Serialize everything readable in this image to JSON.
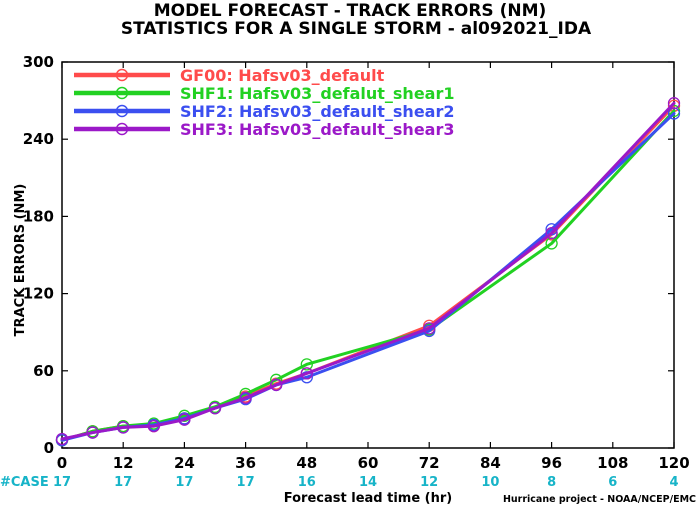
{
  "header": {
    "line1": "MODEL FORECAST - TRACK ERRORS (NM)",
    "line2": "STATISTICS FOR A SINGLE STORM - al092021_IDA"
  },
  "footer": {
    "case_label": "#CASE",
    "credit": "Hurricane project - NOAA/NCEP/EMC"
  },
  "chart_data": {
    "type": "line",
    "title": "MODEL FORECAST - TRACK ERRORS (NM)",
    "subtitle": "STATISTICS FOR A SINGLE STORM - al092021_IDA",
    "xlabel": "Forecast lead time (hr)",
    "ylabel": "TRACK ERRORS (NM)",
    "xlim": [
      0,
      120
    ],
    "ylim": [
      0,
      300
    ],
    "x_ticks": [
      0,
      12,
      24,
      36,
      48,
      60,
      72,
      84,
      96,
      108,
      120
    ],
    "y_ticks": [
      0,
      60,
      120,
      180,
      240,
      300
    ],
    "case_counts": [
      {
        "x": 0,
        "n": "17"
      },
      {
        "x": 12,
        "n": "17"
      },
      {
        "x": 24,
        "n": "17"
      },
      {
        "x": 36,
        "n": "17"
      },
      {
        "x": 48,
        "n": "16"
      },
      {
        "x": 60,
        "n": "14"
      },
      {
        "x": 72,
        "n": "12"
      },
      {
        "x": 84,
        "n": "10"
      },
      {
        "x": 96,
        "n": "8"
      },
      {
        "x": 108,
        "n": "6"
      },
      {
        "x": 120,
        "n": "4"
      }
    ],
    "legend_position": "top-left",
    "grid": false,
    "series": [
      {
        "name": "GF00: Hafsv03_default",
        "color": "#ff4b4b",
        "x": [
          0,
          6,
          12,
          18,
          24,
          30,
          36,
          42,
          48,
          72,
          96,
          120
        ],
        "y": [
          6,
          13,
          17,
          17,
          23,
          31,
          40,
          50,
          58,
          95,
          166,
          266
        ]
      },
      {
        "name": "SHF1: Hafsv03_defalut_shear1",
        "color": "#22d122",
        "x": [
          0,
          6,
          12,
          18,
          24,
          30,
          36,
          42,
          48,
          72,
          96,
          120
        ],
        "y": [
          6,
          13,
          17,
          19,
          25,
          32,
          42,
          53,
          65,
          92,
          159,
          262
        ]
      },
      {
        "name": "SHF2: Hafsv03_default_shear2",
        "color": "#3b4ff0",
        "x": [
          0,
          6,
          12,
          18,
          24,
          30,
          36,
          42,
          48,
          72,
          96,
          120
        ],
        "y": [
          6,
          12,
          16,
          18,
          23,
          31,
          38,
          49,
          55,
          91,
          170,
          260
        ]
      },
      {
        "name": "SHF3: Hafsv03_default_shear3",
        "color": "#9b19c8",
        "x": [
          0,
          6,
          12,
          18,
          24,
          30,
          36,
          42,
          48,
          72,
          96,
          120
        ],
        "y": [
          7,
          12,
          16,
          17,
          22,
          31,
          39,
          49,
          58,
          93,
          167,
          268
        ]
      }
    ]
  }
}
